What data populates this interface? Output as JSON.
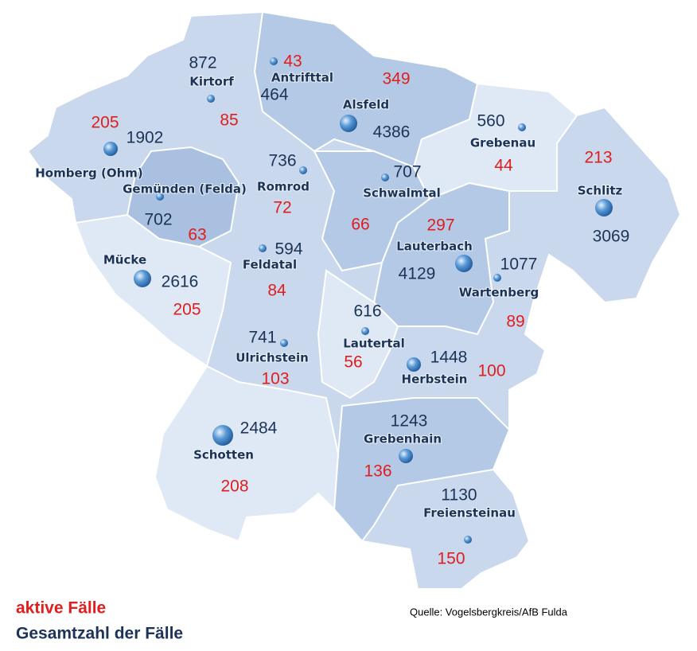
{
  "municipalities": [
    {
      "name": "Kirtorf",
      "total": 872,
      "active": 85
    },
    {
      "name": "Antrifttal",
      "total": 464,
      "active": 43
    },
    {
      "name": "Alsfeld",
      "total": 4386,
      "active": 349
    },
    {
      "name": "Grebenau",
      "total": 560,
      "active": 44
    },
    {
      "name": "Homberg (Ohm)",
      "total": 1902,
      "active": 205
    },
    {
      "name": "Gemünden (Felda)",
      "total": 702,
      "active": 63
    },
    {
      "name": "Romrod",
      "total": 736,
      "active": 72
    },
    {
      "name": "Schwalmtal",
      "total": 707,
      "active": 66
    },
    {
      "name": "Schlitz",
      "total": 3069,
      "active": 213
    },
    {
      "name": "Lauterbach",
      "total": 4129,
      "active": 297
    },
    {
      "name": "Wartenberg",
      "total": 1077,
      "active": 89
    },
    {
      "name": "Mücke",
      "total": 2616,
      "active": 205
    },
    {
      "name": "Feldatal",
      "total": 594,
      "active": 84
    },
    {
      "name": "Ulrichstein",
      "total": 741,
      "active": 103
    },
    {
      "name": "Lautertal",
      "total": 616,
      "active": 56
    },
    {
      "name": "Herbstein",
      "total": 1448,
      "active": 100
    },
    {
      "name": "Schotten",
      "total": 2484,
      "active": 208
    },
    {
      "name": "Grebenhain",
      "total": 1243,
      "active": 136
    },
    {
      "name": "Freiensteinau",
      "total": 1130,
      "active": 150
    }
  ],
  "legend": {
    "active": "aktive Fälle",
    "total": "Gesamtzahl der Fälle"
  },
  "source": "Quelle: Vogelsbergkreis/AfB Fulda"
}
